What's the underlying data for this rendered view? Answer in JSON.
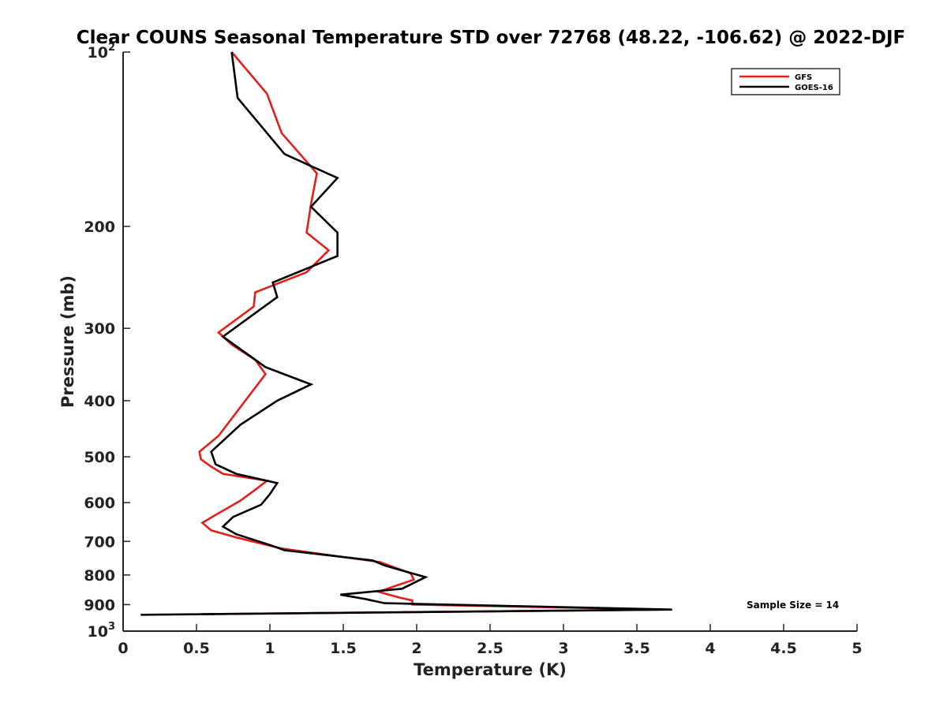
{
  "chart_data": {
    "type": "line",
    "title": "Clear COUNS Seasonal Temperature STD over 72768 (48.22, -106.62) @ 2022-DJF",
    "xlabel": "Temperature (K)",
    "ylabel": "Pressure (mb)",
    "xlim": [
      0,
      5
    ],
    "ylim": [
      100,
      1000
    ],
    "y_scale": "log",
    "y_reversed": true,
    "grid": false,
    "x_ticks": [
      "0",
      "0.5",
      "1",
      "1.5",
      "2",
      "2.5",
      "3",
      "3.5",
      "4",
      "4.5",
      "5"
    ],
    "x_tick_values": [
      0,
      0.5,
      1,
      1.5,
      2,
      2.5,
      3,
      3.5,
      4,
      4.5,
      5
    ],
    "y_ticks": [
      {
        "value": 100,
        "base": "10",
        "exp": "2"
      },
      {
        "value": 200,
        "label": "200"
      },
      {
        "value": 300,
        "label": "300"
      },
      {
        "value": 400,
        "label": "400"
      },
      {
        "value": 500,
        "label": "500"
      },
      {
        "value": 600,
        "label": "600"
      },
      {
        "value": 700,
        "label": "700"
      },
      {
        "value": 800,
        "label": "800"
      },
      {
        "value": 900,
        "label": "900"
      },
      {
        "value": 1000,
        "base": "10",
        "exp": "3"
      }
    ],
    "legend_position": "top-right",
    "annotation": "Sample Size = 14",
    "series": [
      {
        "name": "GFS",
        "color": "#e0201b",
        "points": [
          [
            0.74,
            100
          ],
          [
            0.98,
            118
          ],
          [
            1.08,
            138
          ],
          [
            1.32,
            162
          ],
          [
            1.28,
            183
          ],
          [
            1.25,
            205
          ],
          [
            1.4,
            220
          ],
          [
            1.25,
            240
          ],
          [
            0.9,
            260
          ],
          [
            0.89,
            275
          ],
          [
            0.65,
            305
          ],
          [
            0.74,
            320
          ],
          [
            0.9,
            340
          ],
          [
            0.97,
            360
          ],
          [
            0.8,
            410
          ],
          [
            0.65,
            460
          ],
          [
            0.52,
            490
          ],
          [
            0.53,
            505
          ],
          [
            0.6,
            520
          ],
          [
            0.68,
            535
          ],
          [
            0.98,
            550
          ],
          [
            0.9,
            570
          ],
          [
            0.8,
            595
          ],
          [
            0.63,
            630
          ],
          [
            0.54,
            650
          ],
          [
            0.6,
            670
          ],
          [
            0.78,
            690
          ],
          [
            1.08,
            720
          ],
          [
            1.75,
            760
          ],
          [
            1.96,
            795
          ],
          [
            1.98,
            815
          ],
          [
            1.74,
            855
          ],
          [
            1.88,
            875
          ],
          [
            1.97,
            885
          ],
          [
            1.97,
            900
          ],
          [
            3.7,
            918
          ],
          [
            0.53,
            935
          ]
        ]
      },
      {
        "name": "GOES-16",
        "color": "#000000",
        "points": [
          [
            0.74,
            100
          ],
          [
            0.78,
            120
          ],
          [
            1.1,
            150
          ],
          [
            1.46,
            165
          ],
          [
            1.28,
            185
          ],
          [
            1.46,
            205
          ],
          [
            1.46,
            225
          ],
          [
            1.02,
            250
          ],
          [
            1.05,
            265
          ],
          [
            0.92,
            280
          ],
          [
            0.68,
            310
          ],
          [
            0.97,
            350
          ],
          [
            1.28,
            375
          ],
          [
            1.05,
            400
          ],
          [
            0.8,
            440
          ],
          [
            0.6,
            490
          ],
          [
            0.63,
            515
          ],
          [
            0.77,
            535
          ],
          [
            1.05,
            555
          ],
          [
            1.0,
            580
          ],
          [
            0.94,
            605
          ],
          [
            0.75,
            635
          ],
          [
            0.68,
            660
          ],
          [
            0.77,
            680
          ],
          [
            1.0,
            710
          ],
          [
            1.1,
            725
          ],
          [
            1.7,
            755
          ],
          [
            1.78,
            770
          ],
          [
            2.06,
            807
          ],
          [
            1.9,
            845
          ],
          [
            1.48,
            865
          ],
          [
            1.65,
            880
          ],
          [
            1.78,
            895
          ],
          [
            3.74,
            918
          ],
          [
            0.12,
            937
          ]
        ]
      }
    ]
  }
}
